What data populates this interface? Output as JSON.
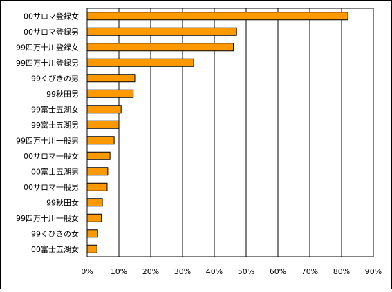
{
  "chart_data": {
    "type": "bar",
    "orientation": "horizontal",
    "categories": [
      "00サロマ登録女",
      "00サロマ登録男",
      "99四万十川登録女",
      "99四万十川登録男",
      "99くびきの男",
      "99秋田男",
      "99富士五湖女",
      "99富士五湖男",
      "99四万十川一般男",
      "00サロマ一般女",
      "00富士五湖男",
      "00サロマ一般男",
      "99秋田女",
      "99四万十川一般女",
      "99くびきの女",
      "00富士五湖女"
    ],
    "values": [
      82,
      47,
      46,
      33.5,
      15,
      14.5,
      10.7,
      10,
      8.5,
      7.2,
      6.5,
      6.3,
      4.8,
      4.5,
      3.3,
      3.1
    ],
    "xlim": [
      0,
      90
    ],
    "xticks": [
      "0%",
      "10%",
      "20%",
      "30%",
      "40%",
      "50%",
      "60%",
      "70%",
      "80%",
      "90%"
    ],
    "title": "",
    "xlabel": "",
    "ylabel": "",
    "grid": true,
    "bar_color": "#FF9900",
    "bar_border_color": "#000000"
  }
}
